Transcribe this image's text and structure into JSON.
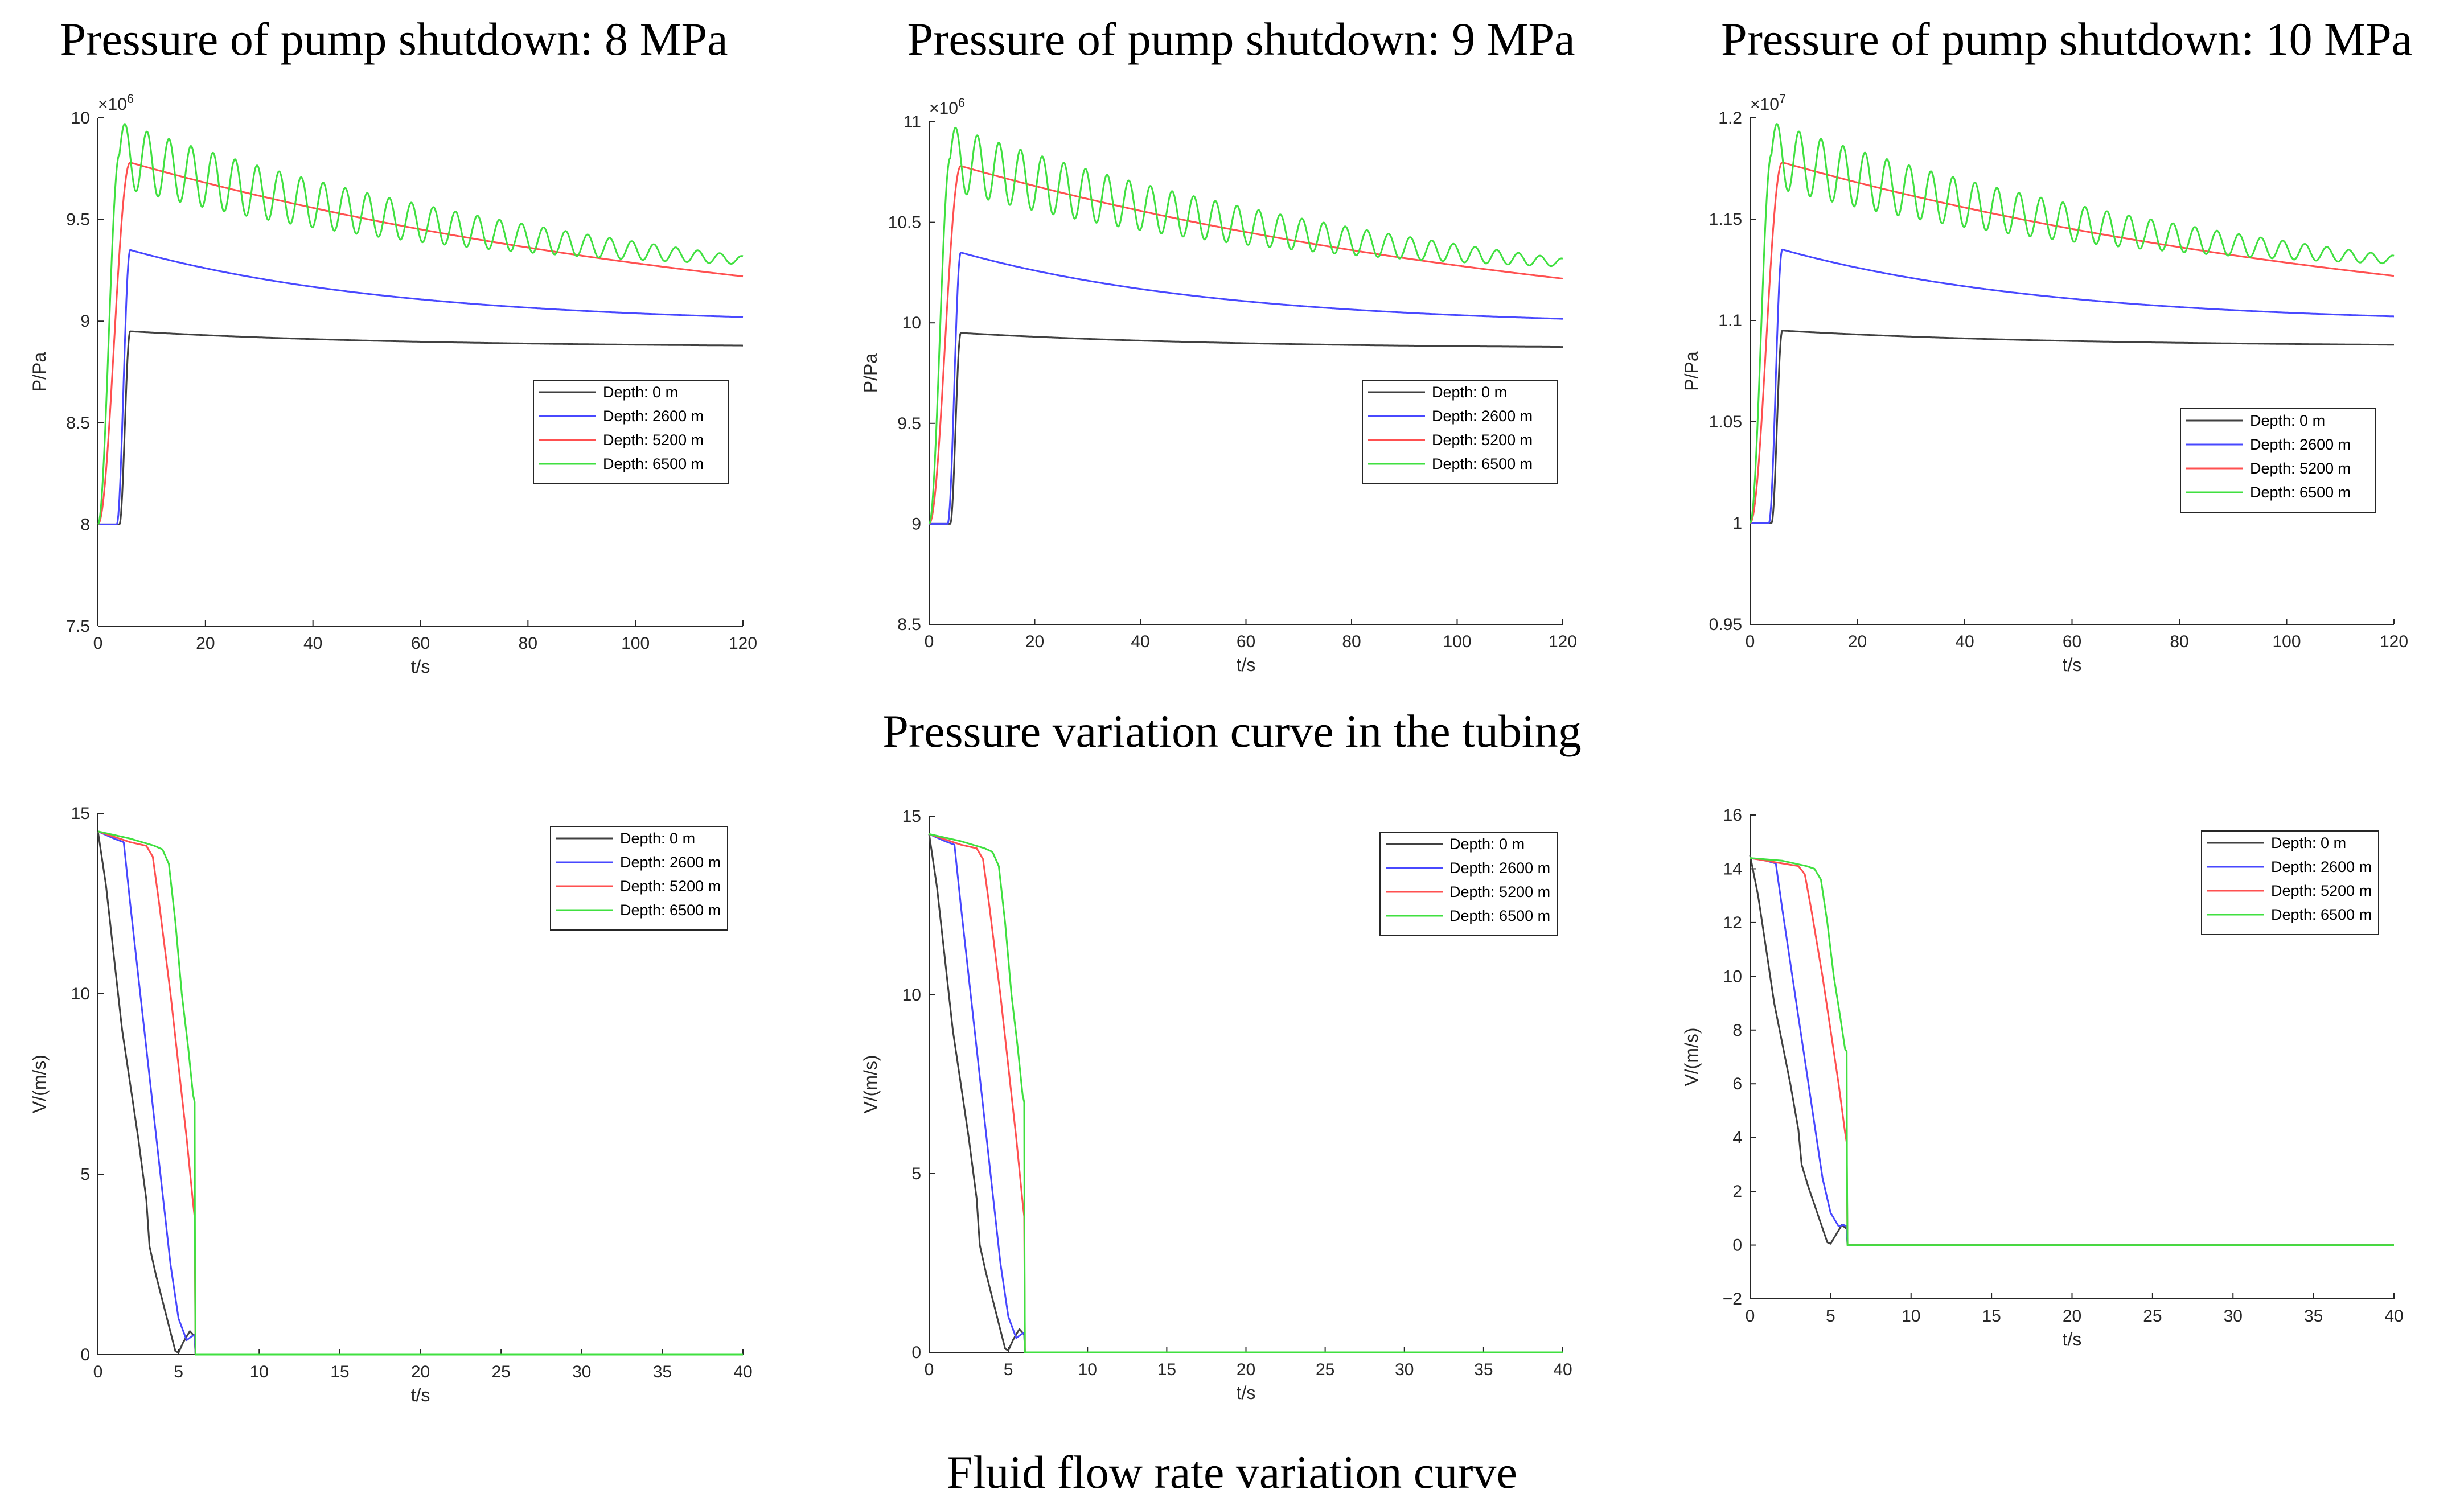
{
  "figure": {
    "row1_caption": "Pressure variation curve in the tubing",
    "row2_caption": "Fluid flow rate variation curve",
    "panel_titles": [
      "Pressure of pump shutdown: 8 MPa",
      "Pressure of pump shutdown: 9 MPa",
      "Pressure of pump shutdown: 10 MPa"
    ]
  },
  "colors": {
    "depth_0": "#404040",
    "depth_2600": "#4848ff",
    "depth_5200": "#ff5050",
    "depth_6500": "#40e040",
    "axis": "#262626"
  },
  "chart_data": [
    {
      "type": "line",
      "title": "Pressure of pump shutdown: 8 MPa",
      "xlabel": "t/s",
      "ylabel": "P/Pa",
      "xlim": [
        0,
        120
      ],
      "ylim": [
        7.5,
        10
      ],
      "xticks": [
        0,
        20,
        40,
        60,
        80,
        100,
        120
      ],
      "yticks": [
        7.5,
        8,
        8.5,
        9,
        9.5,
        10
      ],
      "ytick_labels": [
        "7.5",
        "8",
        "8.5",
        "9",
        "9.5",
        "10"
      ],
      "exponent": "×10^6",
      "legend": "center-right",
      "series": [
        {
          "name": "Depth: 0 m",
          "kind": "pressure",
          "base": 8,
          "peak": 8.95,
          "end": 8.88,
          "rise_start": 4,
          "peak_time": 6,
          "osc_amp": 0,
          "decay_rate": 0.02
        },
        {
          "name": "Depth: 2600 m",
          "kind": "pressure",
          "base": 8,
          "peak": 9.35,
          "end": 9.02,
          "rise_start": 3.5,
          "peak_time": 6,
          "osc_amp": 0,
          "decay_rate": 0.02
        },
        {
          "name": "Depth: 5200 m",
          "kind": "pressure",
          "base": 8,
          "peak": 9.78,
          "end": 9.22,
          "rise_start": 0,
          "peak_time": 6,
          "osc_amp": 0,
          "decay_rate": 0.008
        },
        {
          "name": "Depth: 6500 m",
          "kind": "pressure",
          "base": 8,
          "peak": 9.82,
          "end": 9.3,
          "rise_start": 0,
          "peak_time": 4,
          "osc_amp": 0.16,
          "osc_amp_end": 0.02,
          "osc_period": 4.1,
          "decay_rate": 0.012
        }
      ]
    },
    {
      "type": "line",
      "title": "Pressure of pump shutdown: 9 MPa",
      "xlabel": "t/s",
      "ylabel": "P/Pa",
      "xlim": [
        0,
        120
      ],
      "ylim": [
        8.5,
        11
      ],
      "xticks": [
        0,
        20,
        40,
        60,
        80,
        100,
        120
      ],
      "yticks": [
        8.5,
        9,
        9.5,
        10,
        10.5,
        11
      ],
      "ytick_labels": [
        "8.5",
        "9",
        "9.5",
        "10",
        "10.5",
        "11"
      ],
      "exponent": "×10^6",
      "legend": "center-right",
      "series": [
        {
          "name": "Depth: 0 m",
          "kind": "pressure",
          "base": 9,
          "peak": 9.95,
          "end": 9.88,
          "rise_start": 4,
          "peak_time": 6,
          "osc_amp": 0,
          "decay_rate": 0.02
        },
        {
          "name": "Depth: 2600 m",
          "kind": "pressure",
          "base": 9,
          "peak": 10.35,
          "end": 10.02,
          "rise_start": 3.5,
          "peak_time": 6,
          "osc_amp": 0,
          "decay_rate": 0.02
        },
        {
          "name": "Depth: 5200 m",
          "kind": "pressure",
          "base": 9,
          "peak": 10.78,
          "end": 10.22,
          "rise_start": 0,
          "peak_time": 6,
          "osc_amp": 0,
          "decay_rate": 0.008
        },
        {
          "name": "Depth: 6500 m",
          "kind": "pressure",
          "base": 9,
          "peak": 10.82,
          "end": 10.3,
          "rise_start": 0,
          "peak_time": 4,
          "osc_amp": 0.16,
          "osc_amp_end": 0.02,
          "osc_period": 4.1,
          "decay_rate": 0.012
        }
      ]
    },
    {
      "type": "line",
      "title": "Pressure of pump shutdown: 10 MPa",
      "xlabel": "t/s",
      "ylabel": "P/Pa",
      "xlim": [
        0,
        120
      ],
      "ylim": [
        0.95,
        1.2
      ],
      "xticks": [
        0,
        20,
        40,
        60,
        80,
        100,
        120
      ],
      "yticks": [
        0.95,
        1,
        1.05,
        1.1,
        1.15,
        1.2
      ],
      "ytick_labels": [
        "0.95",
        "1",
        "1.05",
        "1.1",
        "1.15",
        "1.2"
      ],
      "exponent": "×10^7",
      "legend": "center-right",
      "series": [
        {
          "name": "Depth: 0 m",
          "kind": "pressure",
          "base": 1.0,
          "peak": 1.095,
          "end": 1.088,
          "rise_start": 4,
          "peak_time": 6,
          "osc_amp": 0,
          "decay_rate": 0.02
        },
        {
          "name": "Depth: 2600 m",
          "kind": "pressure",
          "base": 1.0,
          "peak": 1.135,
          "end": 1.102,
          "rise_start": 3.5,
          "peak_time": 6,
          "osc_amp": 0,
          "decay_rate": 0.02
        },
        {
          "name": "Depth: 5200 m",
          "kind": "pressure",
          "base": 1.0,
          "peak": 1.178,
          "end": 1.122,
          "rise_start": 0,
          "peak_time": 6,
          "osc_amp": 0,
          "decay_rate": 0.008
        },
        {
          "name": "Depth: 6500 m",
          "kind": "pressure",
          "base": 1.0,
          "peak": 1.182,
          "end": 1.13,
          "rise_start": 0,
          "peak_time": 4,
          "osc_amp": 0.016,
          "osc_amp_end": 0.002,
          "osc_period": 4.1,
          "decay_rate": 0.012
        }
      ]
    },
    {
      "type": "line",
      "title": "Fluid flow rate variation curve",
      "xlabel": "t/s",
      "ylabel": "V/(m/s)",
      "xlim": [
        0,
        40
      ],
      "ylim": [
        0,
        15
      ],
      "xticks": [
        0,
        5,
        10,
        15,
        20,
        25,
        30,
        35,
        40
      ],
      "yticks": [
        0,
        5,
        10,
        15
      ],
      "ytick_labels": [
        "0",
        "5",
        "10",
        "15"
      ],
      "legend": "top-right",
      "series": [
        {
          "name": "Depth: 0 m",
          "points": [
            [
              0,
              14.5
            ],
            [
              0.5,
              13
            ],
            [
              1,
              11
            ],
            [
              1.5,
              9
            ],
            [
              2,
              7.5
            ],
            [
              2.5,
              6
            ],
            [
              3,
              4.3
            ],
            [
              3.2,
              3
            ],
            [
              3.6,
              2.2
            ],
            [
              4,
              1.5
            ],
            [
              4.4,
              0.8
            ],
            [
              4.8,
              0.1
            ],
            [
              5,
              0.05
            ],
            [
              5.3,
              0.35
            ],
            [
              5.7,
              0.65
            ],
            [
              6,
              0.5
            ],
            [
              6.05,
              0
            ],
            [
              40,
              0
            ]
          ]
        },
        {
          "name": "Depth: 2600 m",
          "points": [
            [
              0,
              14.5
            ],
            [
              1,
              14.3
            ],
            [
              1.6,
              14.2
            ],
            [
              2,
              12.5
            ],
            [
              2.5,
              10.5
            ],
            [
              3,
              8.5
            ],
            [
              3.5,
              6.5
            ],
            [
              4,
              4.5
            ],
            [
              4.5,
              2.5
            ],
            [
              5,
              1
            ],
            [
              5.5,
              0.4
            ],
            [
              5.8,
              0.5
            ],
            [
              6,
              0.55
            ],
            [
              6.05,
              0
            ],
            [
              40,
              0
            ]
          ]
        },
        {
          "name": "Depth: 5200 m",
          "points": [
            [
              0,
              14.5
            ],
            [
              2,
              14.2
            ],
            [
              3,
              14.1
            ],
            [
              3.4,
              13.8
            ],
            [
              3.8,
              12.5
            ],
            [
              4.5,
              10
            ],
            [
              5,
              8
            ],
            [
              5.5,
              6
            ],
            [
              5.9,
              4.2
            ],
            [
              6,
              3.8
            ],
            [
              6.05,
              0
            ],
            [
              40,
              0
            ]
          ]
        },
        {
          "name": "Depth: 6500 m",
          "points": [
            [
              0,
              14.5
            ],
            [
              2,
              14.3
            ],
            [
              3.5,
              14.1
            ],
            [
              4,
              14
            ],
            [
              4.4,
              13.6
            ],
            [
              4.8,
              12
            ],
            [
              5.2,
              10
            ],
            [
              5.6,
              8.5
            ],
            [
              5.9,
              7.2
            ],
            [
              6,
              7
            ],
            [
              6.02,
              3
            ],
            [
              6.05,
              0
            ],
            [
              40,
              0
            ]
          ]
        }
      ]
    },
    {
      "type": "line",
      "title": "Fluid flow rate variation curve",
      "xlabel": "t/s",
      "ylabel": "V/(m/s)",
      "xlim": [
        0,
        40
      ],
      "ylim": [
        0,
        15
      ],
      "xticks": [
        0,
        5,
        10,
        15,
        20,
        25,
        30,
        35,
        40
      ],
      "yticks": [
        0,
        5,
        10,
        15
      ],
      "ytick_labels": [
        "0",
        "5",
        "10",
        "15"
      ],
      "legend": "top-right",
      "series": [
        {
          "name": "Depth: 0 m",
          "points": [
            [
              0,
              14.5
            ],
            [
              0.5,
              13
            ],
            [
              1,
              11
            ],
            [
              1.5,
              9
            ],
            [
              2,
              7.5
            ],
            [
              2.5,
              6
            ],
            [
              3,
              4.3
            ],
            [
              3.2,
              3
            ],
            [
              3.6,
              2.2
            ],
            [
              4,
              1.5
            ],
            [
              4.4,
              0.8
            ],
            [
              4.8,
              0.1
            ],
            [
              5,
              0.05
            ],
            [
              5.3,
              0.35
            ],
            [
              5.7,
              0.65
            ],
            [
              6,
              0.5
            ],
            [
              6.05,
              0
            ],
            [
              40,
              0
            ]
          ]
        },
        {
          "name": "Depth: 2600 m",
          "points": [
            [
              0,
              14.5
            ],
            [
              1,
              14.3
            ],
            [
              1.6,
              14.2
            ],
            [
              2,
              12.5
            ],
            [
              2.5,
              10.5
            ],
            [
              3,
              8.5
            ],
            [
              3.5,
              6.5
            ],
            [
              4,
              4.5
            ],
            [
              4.5,
              2.5
            ],
            [
              5,
              1
            ],
            [
              5.5,
              0.4
            ],
            [
              5.8,
              0.5
            ],
            [
              6,
              0.55
            ],
            [
              6.05,
              0
            ],
            [
              40,
              0
            ]
          ]
        },
        {
          "name": "Depth: 5200 m",
          "points": [
            [
              0,
              14.5
            ],
            [
              2,
              14.2
            ],
            [
              3,
              14.1
            ],
            [
              3.4,
              13.8
            ],
            [
              3.8,
              12.5
            ],
            [
              4.5,
              10
            ],
            [
              5,
              8
            ],
            [
              5.5,
              6
            ],
            [
              5.9,
              4.2
            ],
            [
              6,
              3.8
            ],
            [
              6.05,
              0
            ],
            [
              40,
              0
            ]
          ]
        },
        {
          "name": "Depth: 6500 m",
          "points": [
            [
              0,
              14.5
            ],
            [
              2,
              14.3
            ],
            [
              3.5,
              14.1
            ],
            [
              4,
              14
            ],
            [
              4.4,
              13.6
            ],
            [
              4.8,
              12
            ],
            [
              5.2,
              10
            ],
            [
              5.6,
              8.5
            ],
            [
              5.9,
              7.2
            ],
            [
              6,
              7
            ],
            [
              6.02,
              3
            ],
            [
              6.05,
              0
            ],
            [
              40,
              0
            ]
          ]
        }
      ]
    },
    {
      "type": "line",
      "title": "Fluid flow rate variation curve",
      "xlabel": "t/s",
      "ylabel": "V/(m/s)",
      "xlim": [
        0,
        40
      ],
      "ylim": [
        -2,
        16
      ],
      "xticks": [
        0,
        5,
        10,
        15,
        20,
        25,
        30,
        35,
        40
      ],
      "yticks": [
        -2,
        0,
        2,
        4,
        6,
        8,
        10,
        12,
        14,
        16
      ],
      "ytick_labels": [
        "−2",
        "0",
        "2",
        "4",
        "6",
        "8",
        "10",
        "12",
        "14",
        "16"
      ],
      "legend": "top-right",
      "series": [
        {
          "name": "Depth: 0 m",
          "points": [
            [
              0,
              14.5
            ],
            [
              0.5,
              13
            ],
            [
              1,
              11
            ],
            [
              1.5,
              9
            ],
            [
              2,
              7.5
            ],
            [
              2.5,
              6
            ],
            [
              3,
              4.3
            ],
            [
              3.2,
              3
            ],
            [
              3.6,
              2.2
            ],
            [
              4,
              1.5
            ],
            [
              4.4,
              0.8
            ],
            [
              4.8,
              0.1
            ],
            [
              5,
              0.05
            ],
            [
              5.3,
              0.35
            ],
            [
              5.7,
              0.75
            ],
            [
              6,
              0.6
            ],
            [
              6.05,
              0
            ],
            [
              40,
              0
            ]
          ]
        },
        {
          "name": "Depth: 2600 m",
          "points": [
            [
              0,
              14.4
            ],
            [
              1,
              14.3
            ],
            [
              1.6,
              14.2
            ],
            [
              2,
              12.5
            ],
            [
              2.5,
              10.5
            ],
            [
              3,
              8.5
            ],
            [
              3.5,
              6.5
            ],
            [
              4,
              4.5
            ],
            [
              4.5,
              2.5
            ],
            [
              5,
              1.2
            ],
            [
              5.5,
              0.7
            ],
            [
              5.8,
              0.75
            ],
            [
              6,
              0.7
            ],
            [
              6.05,
              0
            ],
            [
              40,
              0
            ]
          ]
        },
        {
          "name": "Depth: 5200 m",
          "points": [
            [
              0,
              14.4
            ],
            [
              2,
              14.2
            ],
            [
              3,
              14.1
            ],
            [
              3.4,
              13.8
            ],
            [
              3.8,
              12.5
            ],
            [
              4.5,
              10
            ],
            [
              5,
              8
            ],
            [
              5.5,
              6
            ],
            [
              5.9,
              4.2
            ],
            [
              6,
              3.8
            ],
            [
              6.05,
              0
            ],
            [
              40,
              0
            ]
          ]
        },
        {
          "name": "Depth: 6500 m",
          "points": [
            [
              0,
              14.4
            ],
            [
              2,
              14.3
            ],
            [
              3.5,
              14.1
            ],
            [
              4,
              14
            ],
            [
              4.4,
              13.6
            ],
            [
              4.8,
              12
            ],
            [
              5.2,
              10
            ],
            [
              5.6,
              8.5
            ],
            [
              5.9,
              7.3
            ],
            [
              6,
              7.2
            ],
            [
              6.02,
              3
            ],
            [
              6.05,
              0
            ],
            [
              40,
              0
            ]
          ]
        }
      ]
    }
  ]
}
